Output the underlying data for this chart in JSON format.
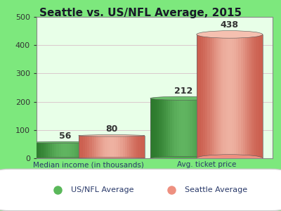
{
  "title": "Seattle vs. US/NFL Average, 2015",
  "categories": [
    "Median income (in thousands)",
    "Avg. ticket price"
  ],
  "us_nfl_values": [
    56,
    212
  ],
  "seattle_values": [
    80,
    438
  ],
  "us_nfl_color_light": "#6abf6a",
  "us_nfl_color_mid": "#4aaa4a",
  "us_nfl_color_dark": "#2d7a2d",
  "seattle_color_light": "#f5c0b0",
  "seattle_color_mid": "#ee9080",
  "seattle_color_dark": "#cc6050",
  "background_color": "#7de87d",
  "plot_bg_top": "#c8f5c8",
  "plot_bg_bottom": "#e8ffe8",
  "ylim": [
    0,
    500
  ],
  "yticks": [
    0,
    100,
    200,
    300,
    400,
    500
  ],
  "legend_us_nfl": "US/NFL Average",
  "legend_seattle": "Seattle Average",
  "legend_us_nfl_dot": "#5ab85a",
  "legend_seattle_dot": "#ee9080",
  "title_fontsize": 11,
  "label_fontsize": 9,
  "bar_width": 0.28,
  "value_label_color": "#333333"
}
